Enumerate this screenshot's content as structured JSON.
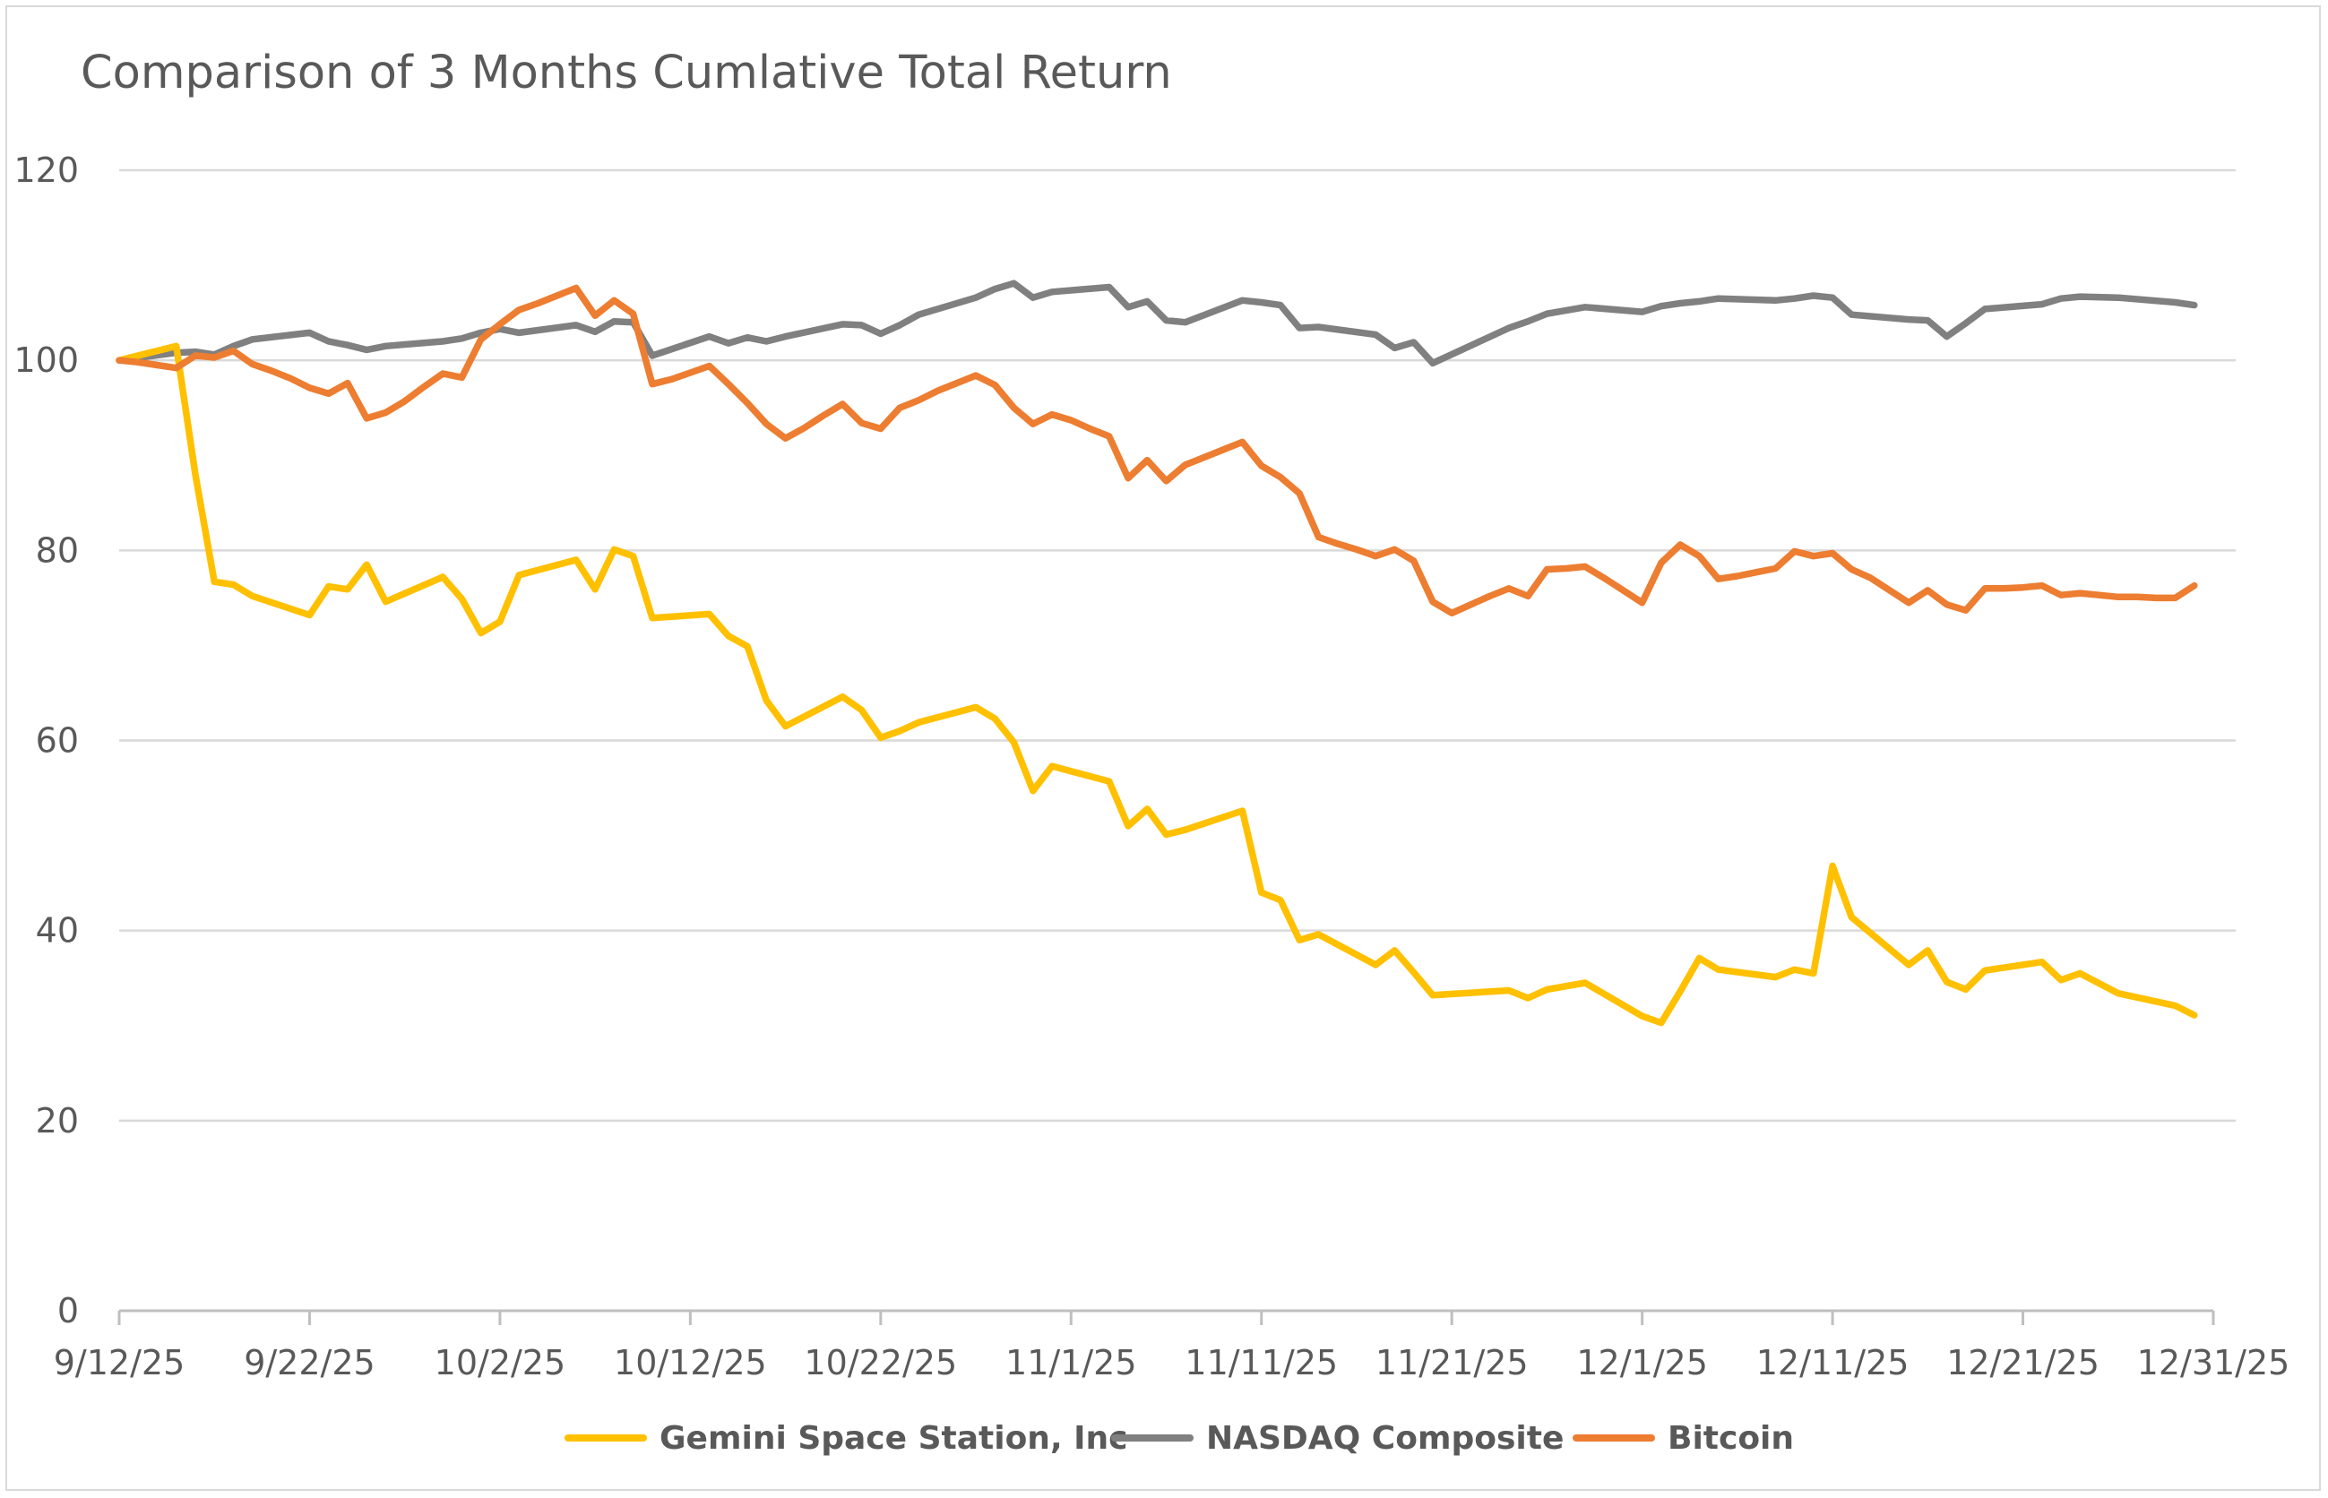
{
  "chart_data": {
    "type": "line",
    "title": "Comparison of 3 Months Cumlative Total Return",
    "xlabel": "",
    "ylabel": "",
    "ylim": [
      0,
      120
    ],
    "y_ticks": [
      "0",
      "20",
      "40",
      "60",
      "80",
      "100",
      "120"
    ],
    "x_ticks": [
      "9/12/25",
      "9/22/25",
      "10/2/25",
      "10/12/25",
      "10/22/25",
      "11/1/25",
      "11/11/25",
      "11/21/25",
      "12/1/25",
      "12/11/25",
      "12/21/25",
      "12/31/25"
    ],
    "grid": "horizontal",
    "legend": "bottom",
    "series": [
      {
        "name": "Gemini Space Station, Inc",
        "color": "#FFC000",
        "points": [
          [
            "9/12/25",
            100.0
          ],
          [
            "9/15/25",
            101.5
          ],
          [
            "9/16/25",
            88.0
          ],
          [
            "9/17/25",
            76.7
          ],
          [
            "9/18/25",
            76.4
          ],
          [
            "9/19/25",
            75.2
          ],
          [
            "9/22/25",
            73.2
          ],
          [
            "9/23/25",
            76.2
          ],
          [
            "9/24/25",
            75.9
          ],
          [
            "9/25/25",
            78.5
          ],
          [
            "9/26/25",
            74.6
          ],
          [
            "9/29/25",
            77.2
          ],
          [
            "9/30/25",
            74.9
          ],
          [
            "10/1/25",
            71.3
          ],
          [
            "10/2/25",
            72.5
          ],
          [
            "10/3/25",
            77.4
          ],
          [
            "10/6/25",
            79.0
          ],
          [
            "10/7/25",
            75.9
          ],
          [
            "10/8/25",
            80.1
          ],
          [
            "10/9/25",
            79.4
          ],
          [
            "10/10/25",
            72.9
          ],
          [
            "10/13/25",
            73.3
          ],
          [
            "10/14/25",
            71.0
          ],
          [
            "10/15/25",
            69.9
          ],
          [
            "10/16/25",
            64.2
          ],
          [
            "10/17/25",
            61.5
          ],
          [
            "10/20/25",
            64.6
          ],
          [
            "10/21/25",
            63.2
          ],
          [
            "10/22/25",
            60.3
          ],
          [
            "10/23/25",
            61.0
          ],
          [
            "10/24/25",
            61.9
          ],
          [
            "10/27/25",
            63.5
          ],
          [
            "10/28/25",
            62.3
          ],
          [
            "10/29/25",
            59.8
          ],
          [
            "10/30/25",
            54.7
          ],
          [
            "10/31/25",
            57.3
          ],
          [
            "11/3/25",
            55.7
          ],
          [
            "11/4/25",
            51.0
          ],
          [
            "11/5/25",
            52.8
          ],
          [
            "11/6/25",
            50.1
          ],
          [
            "11/7/25",
            50.6
          ],
          [
            "11/10/25",
            52.6
          ],
          [
            "11/11/25",
            44.0
          ],
          [
            "11/12/25",
            43.2
          ],
          [
            "11/13/25",
            39.0
          ],
          [
            "11/14/25",
            39.6
          ],
          [
            "11/17/25",
            36.4
          ],
          [
            "11/18/25",
            37.9
          ],
          [
            "11/19/25",
            35.6
          ],
          [
            "11/20/25",
            33.2
          ],
          [
            "11/24/25",
            33.7
          ],
          [
            "11/25/25",
            32.9
          ],
          [
            "11/26/25",
            33.8
          ],
          [
            "11/28/25",
            34.5
          ],
          [
            "12/1/25",
            31.0
          ],
          [
            "12/2/25",
            30.3
          ],
          [
            "12/3/25",
            33.6
          ],
          [
            "12/4/25",
            37.1
          ],
          [
            "12/5/25",
            35.9
          ],
          [
            "12/8/25",
            35.1
          ],
          [
            "12/9/25",
            35.9
          ],
          [
            "12/10/25",
            35.5
          ],
          [
            "12/11/25",
            46.8
          ],
          [
            "12/12/25",
            41.4
          ],
          [
            "12/15/25",
            36.4
          ],
          [
            "12/16/25",
            37.9
          ],
          [
            "12/17/25",
            34.6
          ],
          [
            "12/18/25",
            33.8
          ],
          [
            "12/19/25",
            35.8
          ],
          [
            "12/22/25",
            36.7
          ],
          [
            "12/23/25",
            34.8
          ],
          [
            "12/24/25",
            35.5
          ],
          [
            "12/26/25",
            33.4
          ],
          [
            "12/29/25",
            32.1
          ],
          [
            "12/30/25",
            31.1
          ]
        ]
      },
      {
        "name": "NASDAQ Composite",
        "color": "#808080",
        "points": [
          [
            "9/12/25",
            100.0
          ],
          [
            "9/15/25",
            100.8
          ],
          [
            "9/16/25",
            100.9
          ],
          [
            "9/17/25",
            100.6
          ],
          [
            "9/18/25",
            101.5
          ],
          [
            "9/19/25",
            102.2
          ],
          [
            "9/22/25",
            102.9
          ],
          [
            "9/23/25",
            102.0
          ],
          [
            "9/24/25",
            101.6
          ],
          [
            "9/25/25",
            101.1
          ],
          [
            "9/26/25",
            101.5
          ],
          [
            "9/29/25",
            102.0
          ],
          [
            "9/30/25",
            102.3
          ],
          [
            "10/1/25",
            102.9
          ],
          [
            "10/2/25",
            103.3
          ],
          [
            "10/3/25",
            102.9
          ],
          [
            "10/6/25",
            103.7
          ],
          [
            "10/7/25",
            103.0
          ],
          [
            "10/8/25",
            104.1
          ],
          [
            "10/9/25",
            104.0
          ],
          [
            "10/10/25",
            100.5
          ],
          [
            "10/13/25",
            102.5
          ],
          [
            "10/14/25",
            101.8
          ],
          [
            "10/15/25",
            102.4
          ],
          [
            "10/16/25",
            102.0
          ],
          [
            "10/17/25",
            102.5
          ],
          [
            "10/20/25",
            103.8
          ],
          [
            "10/21/25",
            103.7
          ],
          [
            "10/22/25",
            102.8
          ],
          [
            "10/23/25",
            103.7
          ],
          [
            "10/24/25",
            104.8
          ],
          [
            "10/27/25",
            106.6
          ],
          [
            "10/28/25",
            107.5
          ],
          [
            "10/29/25",
            108.1
          ],
          [
            "10/30/25",
            106.6
          ],
          [
            "10/31/25",
            107.2
          ],
          [
            "11/3/25",
            107.7
          ],
          [
            "11/4/25",
            105.6
          ],
          [
            "11/5/25",
            106.2
          ],
          [
            "11/6/25",
            104.2
          ],
          [
            "11/7/25",
            104.0
          ],
          [
            "11/10/25",
            106.3
          ],
          [
            "11/11/25",
            106.1
          ],
          [
            "11/12/25",
            105.8
          ],
          [
            "11/13/25",
            103.4
          ],
          [
            "11/14/25",
            103.5
          ],
          [
            "11/17/25",
            102.7
          ],
          [
            "11/18/25",
            101.3
          ],
          [
            "11/19/25",
            101.9
          ],
          [
            "11/20/25",
            99.7
          ],
          [
            "11/24/25",
            103.4
          ],
          [
            "11/25/25",
            104.1
          ],
          [
            "11/26/25",
            104.9
          ],
          [
            "11/28/25",
            105.6
          ],
          [
            "12/1/25",
            105.1
          ],
          [
            "12/2/25",
            105.7
          ],
          [
            "12/3/25",
            106.0
          ],
          [
            "12/4/25",
            106.2
          ],
          [
            "12/5/25",
            106.5
          ],
          [
            "12/8/25",
            106.3
          ],
          [
            "12/9/25",
            106.5
          ],
          [
            "12/10/25",
            106.8
          ],
          [
            "12/11/25",
            106.6
          ],
          [
            "12/12/25",
            104.8
          ],
          [
            "12/15/25",
            104.3
          ],
          [
            "12/16/25",
            104.2
          ],
          [
            "12/17/25",
            102.5
          ],
          [
            "12/18/25",
            103.9
          ],
          [
            "12/19/25",
            105.4
          ],
          [
            "12/22/25",
            105.9
          ],
          [
            "12/23/25",
            106.5
          ],
          [
            "12/24/25",
            106.7
          ],
          [
            "12/26/25",
            106.6
          ],
          [
            "12/29/25",
            106.1
          ],
          [
            "12/30/25",
            105.8
          ]
        ]
      },
      {
        "name": "Bitcoin",
        "color": "#ED7D31",
        "points": [
          [
            "9/12/25",
            100.0
          ],
          [
            "9/13/25",
            99.8
          ],
          [
            "9/14/25",
            99.5
          ],
          [
            "9/15/25",
            99.2
          ],
          [
            "9/16/25",
            100.5
          ],
          [
            "9/17/25",
            100.3
          ],
          [
            "9/18/25",
            101.0
          ],
          [
            "9/19/25",
            99.6
          ],
          [
            "9/20/25",
            98.9
          ],
          [
            "9/21/25",
            98.1
          ],
          [
            "9/22/25",
            97.1
          ],
          [
            "9/23/25",
            96.5
          ],
          [
            "9/24/25",
            97.6
          ],
          [
            "9/25/25",
            93.9
          ],
          [
            "9/26/25",
            94.5
          ],
          [
            "9/27/25",
            95.7
          ],
          [
            "9/28/25",
            97.2
          ],
          [
            "9/29/25",
            98.6
          ],
          [
            "9/30/25",
            98.2
          ],
          [
            "10/1/25",
            102.2
          ],
          [
            "10/2/25",
            103.8
          ],
          [
            "10/3/25",
            105.3
          ],
          [
            "10/4/25",
            106.0
          ],
          [
            "10/5/25",
            106.8
          ],
          [
            "10/6/25",
            107.6
          ],
          [
            "10/7/25",
            104.7
          ],
          [
            "10/8/25",
            106.3
          ],
          [
            "10/9/25",
            104.9
          ],
          [
            "10/10/25",
            97.5
          ],
          [
            "10/11/25",
            98.0
          ],
          [
            "10/12/25",
            98.7
          ],
          [
            "10/13/25",
            99.4
          ],
          [
            "10/14/25",
            97.5
          ],
          [
            "10/15/25",
            95.5
          ],
          [
            "10/16/25",
            93.3
          ],
          [
            "10/17/25",
            91.8
          ],
          [
            "10/18/25",
            92.9
          ],
          [
            "10/19/25",
            94.2
          ],
          [
            "10/20/25",
            95.4
          ],
          [
            "10/21/25",
            93.4
          ],
          [
            "10/22/25",
            92.8
          ],
          [
            "10/23/25",
            95.0
          ],
          [
            "10/24/25",
            95.8
          ],
          [
            "10/25/25",
            96.8
          ],
          [
            "10/26/25",
            97.6
          ],
          [
            "10/27/25",
            98.4
          ],
          [
            "10/28/25",
            97.4
          ],
          [
            "10/29/25",
            95.0
          ],
          [
            "10/30/25",
            93.3
          ],
          [
            "10/31/25",
            94.3
          ],
          [
            "11/1/25",
            93.7
          ],
          [
            "11/2/25",
            92.8
          ],
          [
            "11/3/25",
            92.0
          ],
          [
            "11/4/25",
            87.6
          ],
          [
            "11/5/25",
            89.5
          ],
          [
            "11/6/25",
            87.3
          ],
          [
            "11/7/25",
            89.0
          ],
          [
            "11/8/25",
            89.8
          ],
          [
            "11/9/25",
            90.6
          ],
          [
            "11/10/25",
            91.4
          ],
          [
            "11/11/25",
            88.9
          ],
          [
            "11/12/25",
            87.7
          ],
          [
            "11/13/25",
            86.0
          ],
          [
            "11/14/25",
            81.4
          ],
          [
            "11/15/25",
            80.7
          ],
          [
            "11/16/25",
            80.1
          ],
          [
            "11/17/25",
            79.4
          ],
          [
            "11/18/25",
            80.1
          ],
          [
            "11/19/25",
            78.9
          ],
          [
            "11/20/25",
            74.6
          ],
          [
            "11/21/25",
            73.4
          ],
          [
            "11/22/25",
            74.3
          ],
          [
            "11/23/25",
            75.2
          ],
          [
            "11/24/25",
            76.0
          ],
          [
            "11/25/25",
            75.2
          ],
          [
            "11/26/25",
            78.0
          ],
          [
            "11/27/25",
            78.1
          ],
          [
            "11/28/25",
            78.3
          ],
          [
            "11/29/25",
            77.1
          ],
          [
            "11/30/25",
            75.8
          ],
          [
            "12/1/25",
            74.5
          ],
          [
            "12/2/25",
            78.7
          ],
          [
            "12/3/25",
            80.6
          ],
          [
            "12/4/25",
            79.4
          ],
          [
            "12/5/25",
            77.0
          ],
          [
            "12/6/25",
            77.3
          ],
          [
            "12/7/25",
            77.7
          ],
          [
            "12/8/25",
            78.1
          ],
          [
            "12/9/25",
            79.9
          ],
          [
            "12/10/25",
            79.4
          ],
          [
            "12/11/25",
            79.7
          ],
          [
            "12/12/25",
            78.0
          ],
          [
            "12/13/25",
            77.1
          ],
          [
            "12/14/25",
            75.8
          ],
          [
            "12/15/25",
            74.5
          ],
          [
            "12/16/25",
            75.8
          ],
          [
            "12/17/25",
            74.3
          ],
          [
            "12/18/25",
            73.7
          ],
          [
            "12/19/25",
            76.0
          ],
          [
            "12/20/25",
            76.0
          ],
          [
            "12/21/25",
            76.1
          ],
          [
            "12/22/25",
            76.3
          ],
          [
            "12/23/25",
            75.3
          ],
          [
            "12/24/25",
            75.5
          ],
          [
            "12/25/25",
            75.3
          ],
          [
            "12/26/25",
            75.1
          ],
          [
            "12/27/25",
            75.1
          ],
          [
            "12/28/25",
            75.0
          ],
          [
            "12/29/25",
            75.0
          ],
          [
            "12/30/25",
            76.3
          ]
        ]
      }
    ]
  }
}
